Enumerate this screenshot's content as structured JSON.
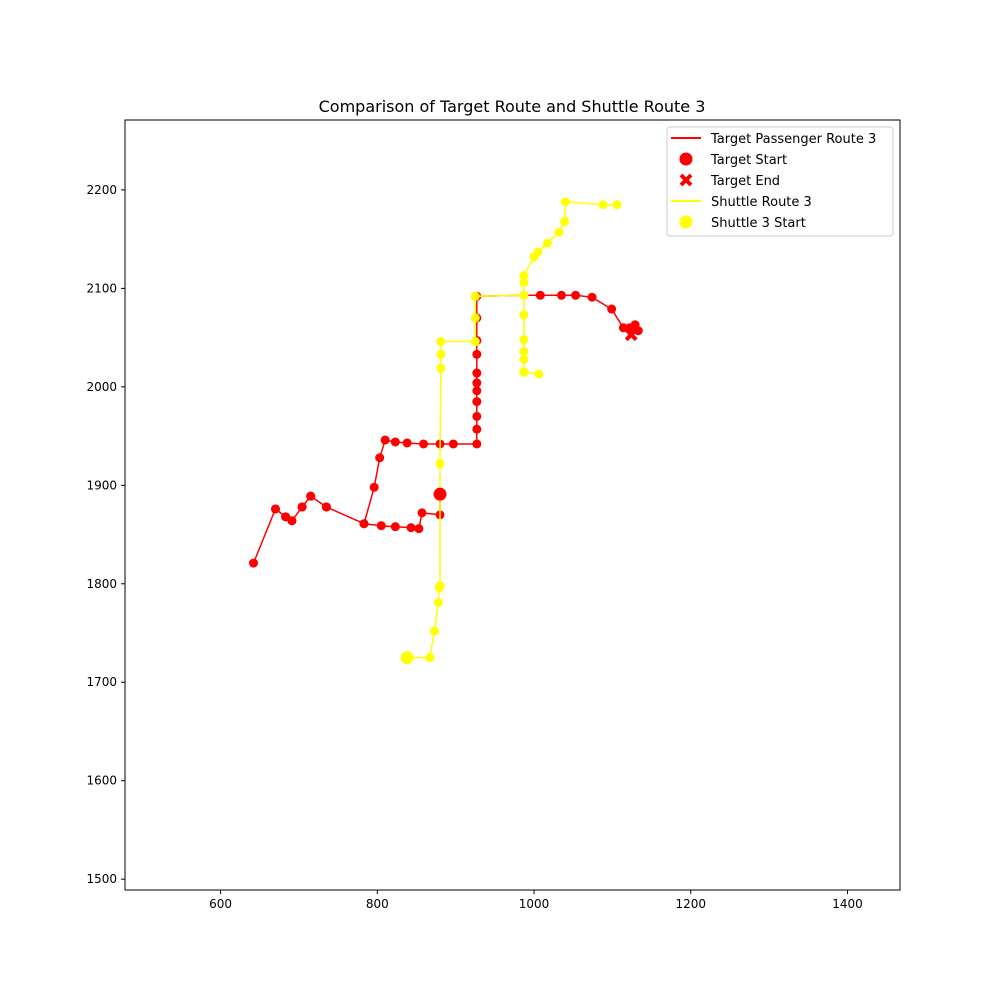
{
  "chart_data": {
    "type": "line",
    "title": "Comparison of Target Route and Shuttle Route 3",
    "xlabel": "",
    "ylabel": "",
    "xlim": [
      478,
      1467
    ],
    "ylim": [
      1489,
      2271
    ],
    "x_ticks": [
      600,
      800,
      1000,
      1200,
      1400
    ],
    "y_ticks": [
      1500,
      1600,
      1700,
      1800,
      1900,
      2000,
      2100,
      2200
    ],
    "grid": false,
    "legend_position": "top-right",
    "colors": {
      "target": "#ff0000",
      "shuttle": "#ffff00"
    },
    "legend": [
      {
        "label": "Target Passenger Route 3",
        "kind": "line",
        "color": "#ff0000"
      },
      {
        "label": "Target Start",
        "kind": "circle",
        "color": "#ff0000"
      },
      {
        "label": "Target End",
        "kind": "x",
        "color": "#ff0000"
      },
      {
        "label": "Shuttle Route 3",
        "kind": "line",
        "color": "#ffff00"
      },
      {
        "label": "Shuttle 3 Start",
        "kind": "circle",
        "color": "#ffff00"
      }
    ],
    "series": [
      {
        "name": "Target Passenger Route 3",
        "color": "#ff0000",
        "points": [
          [
            880,
            1891
          ],
          [
            880,
            1870
          ],
          [
            857,
            1872
          ],
          [
            853,
            1856
          ],
          [
            843,
            1857
          ],
          [
            823,
            1858
          ],
          [
            805,
            1859
          ],
          [
            783,
            1861
          ],
          [
            735,
            1878
          ],
          [
            715,
            1889
          ],
          [
            704,
            1878
          ],
          [
            691,
            1864
          ],
          [
            683,
            1868
          ],
          [
            670,
            1876
          ],
          [
            642,
            1821
          ],
          [
            670,
            1876
          ],
          [
            683,
            1868
          ],
          [
            691,
            1864
          ],
          [
            704,
            1878
          ],
          [
            715,
            1889
          ],
          [
            735,
            1878
          ],
          [
            783,
            1861
          ],
          [
            796,
            1898
          ],
          [
            803,
            1928
          ],
          [
            810,
            1946
          ],
          [
            823,
            1944
          ],
          [
            838,
            1943
          ],
          [
            859,
            1942
          ],
          [
            880,
            1942
          ],
          [
            897,
            1942
          ],
          [
            927,
            1942
          ],
          [
            927,
            1957
          ],
          [
            927,
            1970
          ],
          [
            927,
            1985
          ],
          [
            927,
            1996
          ],
          [
            927,
            2004
          ],
          [
            927,
            2014
          ],
          [
            927,
            2033
          ],
          [
            927,
            2047
          ],
          [
            927,
            2070
          ],
          [
            927,
            2092
          ],
          [
            987,
            2093
          ],
          [
            1008,
            2093
          ],
          [
            1035,
            2093
          ],
          [
            1053,
            2093
          ],
          [
            1074,
            2091
          ],
          [
            1099,
            2079
          ],
          [
            1114,
            2060
          ],
          [
            1122,
            2060
          ],
          [
            1129,
            2063
          ],
          [
            1133,
            2057
          ]
        ]
      },
      {
        "name": "Shuttle Route 3",
        "color": "#ffff00",
        "points": [
          [
            838,
            1725
          ],
          [
            867,
            1725
          ],
          [
            873,
            1752
          ],
          [
            878,
            1781
          ],
          [
            879,
            1796
          ],
          [
            880,
            1798
          ],
          [
            880,
            1922
          ],
          [
            881,
            2019
          ],
          [
            881,
            2033
          ],
          [
            881,
            2046
          ],
          [
            925,
            2046
          ],
          [
            925,
            2070
          ],
          [
            925,
            2092
          ],
          [
            987,
            2093
          ],
          [
            987,
            2073
          ],
          [
            987,
            2048
          ],
          [
            987,
            2036
          ],
          [
            987,
            2028
          ],
          [
            987,
            2015
          ],
          [
            1006,
            2013
          ],
          [
            987,
            2015
          ],
          [
            987,
            2093
          ],
          [
            987,
            2106
          ],
          [
            987,
            2113
          ],
          [
            1000,
            2132
          ],
          [
            1005,
            2137
          ],
          [
            1017,
            2146
          ],
          [
            1032,
            2157
          ],
          [
            1039,
            2168
          ],
          [
            1040,
            2188
          ],
          [
            1088,
            2185
          ],
          [
            1106,
            2185
          ]
        ]
      }
    ],
    "target_start": [
      880,
      1891
    ],
    "target_end": [
      1124,
      2053
    ],
    "shuttle_start": [
      838,
      1725
    ]
  }
}
